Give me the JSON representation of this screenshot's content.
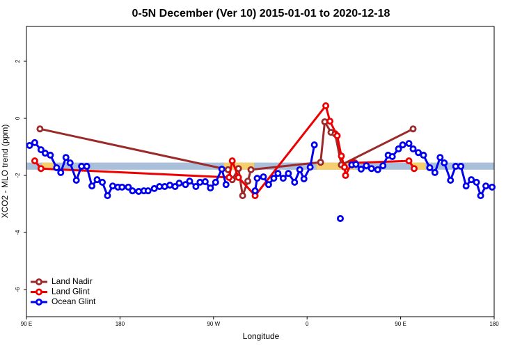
{
  "chart_data": {
    "type": "line",
    "title": "0-5N December (Ver 10)   2015-01-01 to 2020-12-18",
    "x_label": "Longitude",
    "y_label": "XCO2 - MLO trend (ppm)",
    "xlim": [
      90,
      540
    ],
    "xticks": [
      {
        "value": 90,
        "label": "90 E"
      },
      180,
      {
        "value": 270,
        "label": "90 W"
      },
      {
        "value": 360,
        "label": "0"
      },
      {
        "value": 450,
        "label": "90 E"
      },
      {
        "value": 540,
        "label": "180"
      }
    ],
    "ylim": [
      -6.95,
      3.22
    ],
    "yticks": [
      -6,
      -4,
      -2,
      0,
      2
    ],
    "band": [
      -1.55,
      -1.8
    ],
    "band_color": "#aabfda",
    "highlight_color": "#f5cf6e",
    "highlight_ranges": [
      [
        105,
        118
      ],
      [
        280,
        309
      ],
      [
        369,
        406
      ],
      [
        461,
        474
      ]
    ],
    "legend": "bottom-left",
    "series": [
      {
        "name": "Land Nadir",
        "color": "#9b2a2a",
        "x": [
          103,
          284,
          288,
          294,
          298,
          303,
          306,
          373,
          377,
          383,
          387,
          393,
          462
        ],
        "values": [
          -0.37,
          -1.8,
          -2.15,
          -1.76,
          -2.71,
          -2.2,
          -1.8,
          -1.54,
          -0.12,
          -0.49,
          -0.54,
          -1.63,
          -0.37
        ]
      },
      {
        "name": "Land Glint",
        "color": "#ee0000",
        "x": [
          98,
          104,
          285,
          288,
          294,
          310,
          378,
          382,
          389,
          393,
          396,
          397,
          403,
          406,
          458,
          463
        ],
        "values": [
          -1.49,
          -1.76,
          -2.07,
          -1.49,
          -2.07,
          -2.71,
          0.44,
          -0.1,
          -0.61,
          -1.32,
          -1.71,
          -2.0,
          -1.56,
          -1.56,
          -1.49,
          -1.76
        ]
      },
      {
        "name": "Ocean Glint",
        "color": "#0000ee",
        "x": [
          93,
          98,
          104,
          108,
          113,
          119,
          123,
          128,
          132,
          138,
          143,
          148,
          153,
          158,
          163,
          168,
          173,
          178,
          182,
          188,
          192,
          198,
          203,
          207,
          213,
          218,
          223,
          228,
          233,
          237,
          243,
          247,
          253,
          257,
          262,
          267,
          272,
          278,
          282,
          296,
          310,
          312,
          318,
          323,
          328,
          332,
          337,
          342,
          348,
          353,
          357,
          363,
          367,
          380,
          392,
          398,
          403,
          407,
          412,
          417,
          422,
          428,
          433,
          438,
          442,
          448,
          452,
          458,
          462,
          467,
          472,
          478,
          483,
          488,
          492,
          498,
          503,
          508,
          513,
          518,
          523,
          527,
          532,
          538
        ],
        "values": [
          -0.95,
          -0.85,
          -1.1,
          -1.22,
          -1.29,
          -1.73,
          -1.9,
          -1.37,
          -1.56,
          -2.17,
          -1.68,
          -1.68,
          -2.37,
          -2.15,
          -2.24,
          -2.71,
          -2.37,
          -2.41,
          -2.41,
          -2.41,
          -2.54,
          -2.56,
          -2.54,
          -2.54,
          -2.46,
          -2.39,
          -2.39,
          -2.34,
          -2.39,
          -2.27,
          -2.32,
          -2.2,
          -2.39,
          -2.24,
          -2.22,
          -2.44,
          -2.24,
          -1.78,
          -2.32,
          null,
          -2.54,
          -2.1,
          -2.05,
          -2.32,
          -2.1,
          -1.93,
          -2.1,
          -1.93,
          -2.24,
          -1.8,
          -2.12,
          -1.71,
          -0.93,
          null,
          -3.51,
          null,
          -1.63,
          -1.61,
          -1.78,
          -1.66,
          -1.76,
          -1.8,
          -1.66,
          -1.29,
          -1.34,
          -1.07,
          -0.93,
          -0.88,
          -1.07,
          -1.2,
          -1.29,
          -1.73,
          -1.9,
          -1.37,
          -1.56,
          -2.17,
          -1.68,
          -1.68,
          -2.37,
          -2.15,
          -2.24,
          -2.71,
          -2.37,
          -2.41
        ]
      }
    ]
  }
}
